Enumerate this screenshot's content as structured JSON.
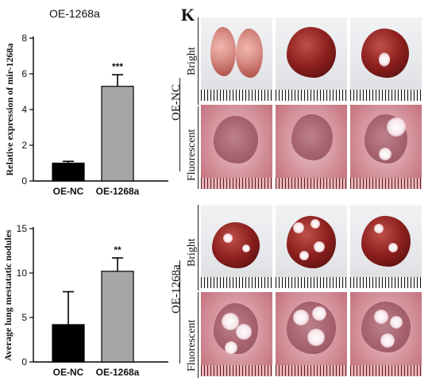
{
  "panel_letter": "K",
  "figure_labels": {
    "group_top": "OE-NC",
    "group_bottom": "OE-1268a",
    "row_bright": "Bright",
    "row_fluorescent": "Fluorescent"
  },
  "chart_data": [
    {
      "type": "bar",
      "title": "OE-1268a",
      "ylabel": "Relative expression of mir-1268a",
      "xlabel": "",
      "categories": [
        "OE-NC",
        "OE-1268a"
      ],
      "values": [
        1.0,
        5.3
      ],
      "errors": [
        0.1,
        0.65
      ],
      "bar_colors": [
        "#000000",
        "#a6a6a6"
      ],
      "significance": [
        "",
        "***"
      ],
      "ylim": [
        0,
        8
      ],
      "yticks": [
        0,
        2,
        4,
        6,
        8
      ],
      "grid": false
    },
    {
      "type": "bar",
      "title": "",
      "ylabel": "Average lung mestatatic nodules",
      "xlabel": "",
      "categories": [
        "OE-NC",
        "OE-1268a"
      ],
      "values": [
        4.2,
        10.2
      ],
      "errors": [
        3.7,
        1.5
      ],
      "bar_colors": [
        "#000000",
        "#a6a6a6"
      ],
      "significance": [
        "",
        "**"
      ],
      "ylim": [
        0,
        15
      ],
      "yticks": [
        0,
        5,
        10,
        15
      ],
      "grid": false
    }
  ]
}
